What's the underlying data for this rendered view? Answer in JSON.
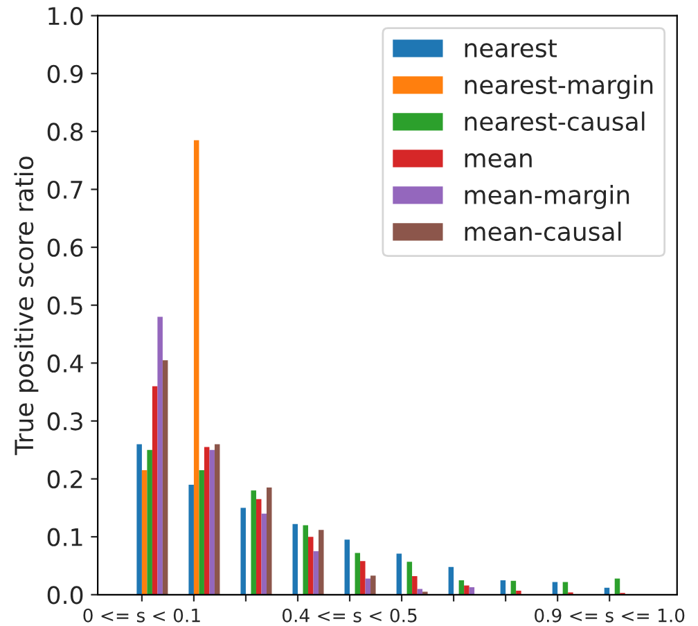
{
  "chart_data": {
    "type": "bar",
    "ylabel": "True positive score ratio",
    "categories": [
      "0 <= s < 0.1",
      null,
      null,
      null,
      "0.4 <= s < 0.5",
      null,
      null,
      null,
      null,
      "0.9 <= s <= 1.0"
    ],
    "series": [
      {
        "name": "nearest",
        "color": "#1f77b4",
        "values": [
          0.26,
          0.19,
          0.15,
          0.122,
          0.095,
          0.071,
          0.048,
          0.025,
          0.022,
          0.012
        ]
      },
      {
        "name": "nearest-margin",
        "color": "#ff7f0e",
        "values": [
          0.215,
          0.785,
          null,
          null,
          null,
          null,
          null,
          null,
          null,
          null
        ]
      },
      {
        "name": "nearest-causal",
        "color": "#2ca02c",
        "values": [
          0.25,
          0.215,
          0.18,
          0.12,
          0.072,
          0.057,
          0.025,
          0.024,
          0.022,
          0.028
        ]
      },
      {
        "name": "mean",
        "color": "#d62728",
        "values": [
          0.36,
          0.255,
          0.165,
          0.1,
          0.058,
          0.032,
          0.016,
          0.007,
          0.004,
          0.003
        ]
      },
      {
        "name": "mean-margin",
        "color": "#9467bd",
        "values": [
          0.48,
          0.25,
          0.14,
          0.075,
          0.028,
          0.01,
          0.013,
          null,
          null,
          null
        ]
      },
      {
        "name": "mean-causal",
        "color": "#8c564b",
        "values": [
          0.405,
          0.26,
          0.185,
          0.112,
          0.033,
          0.005,
          null,
          null,
          null,
          null
        ]
      }
    ],
    "ylim": [
      0,
      1.0
    ],
    "yticks": [
      {
        "value": 0,
        "label": "0.0"
      },
      0.1,
      0.2,
      0.3,
      0.4,
      0.5,
      0.6,
      0.7,
      0.8,
      0.9,
      {
        "value": 1,
        "label": "1.0"
      }
    ],
    "legend": "top right",
    "grid": false
  }
}
